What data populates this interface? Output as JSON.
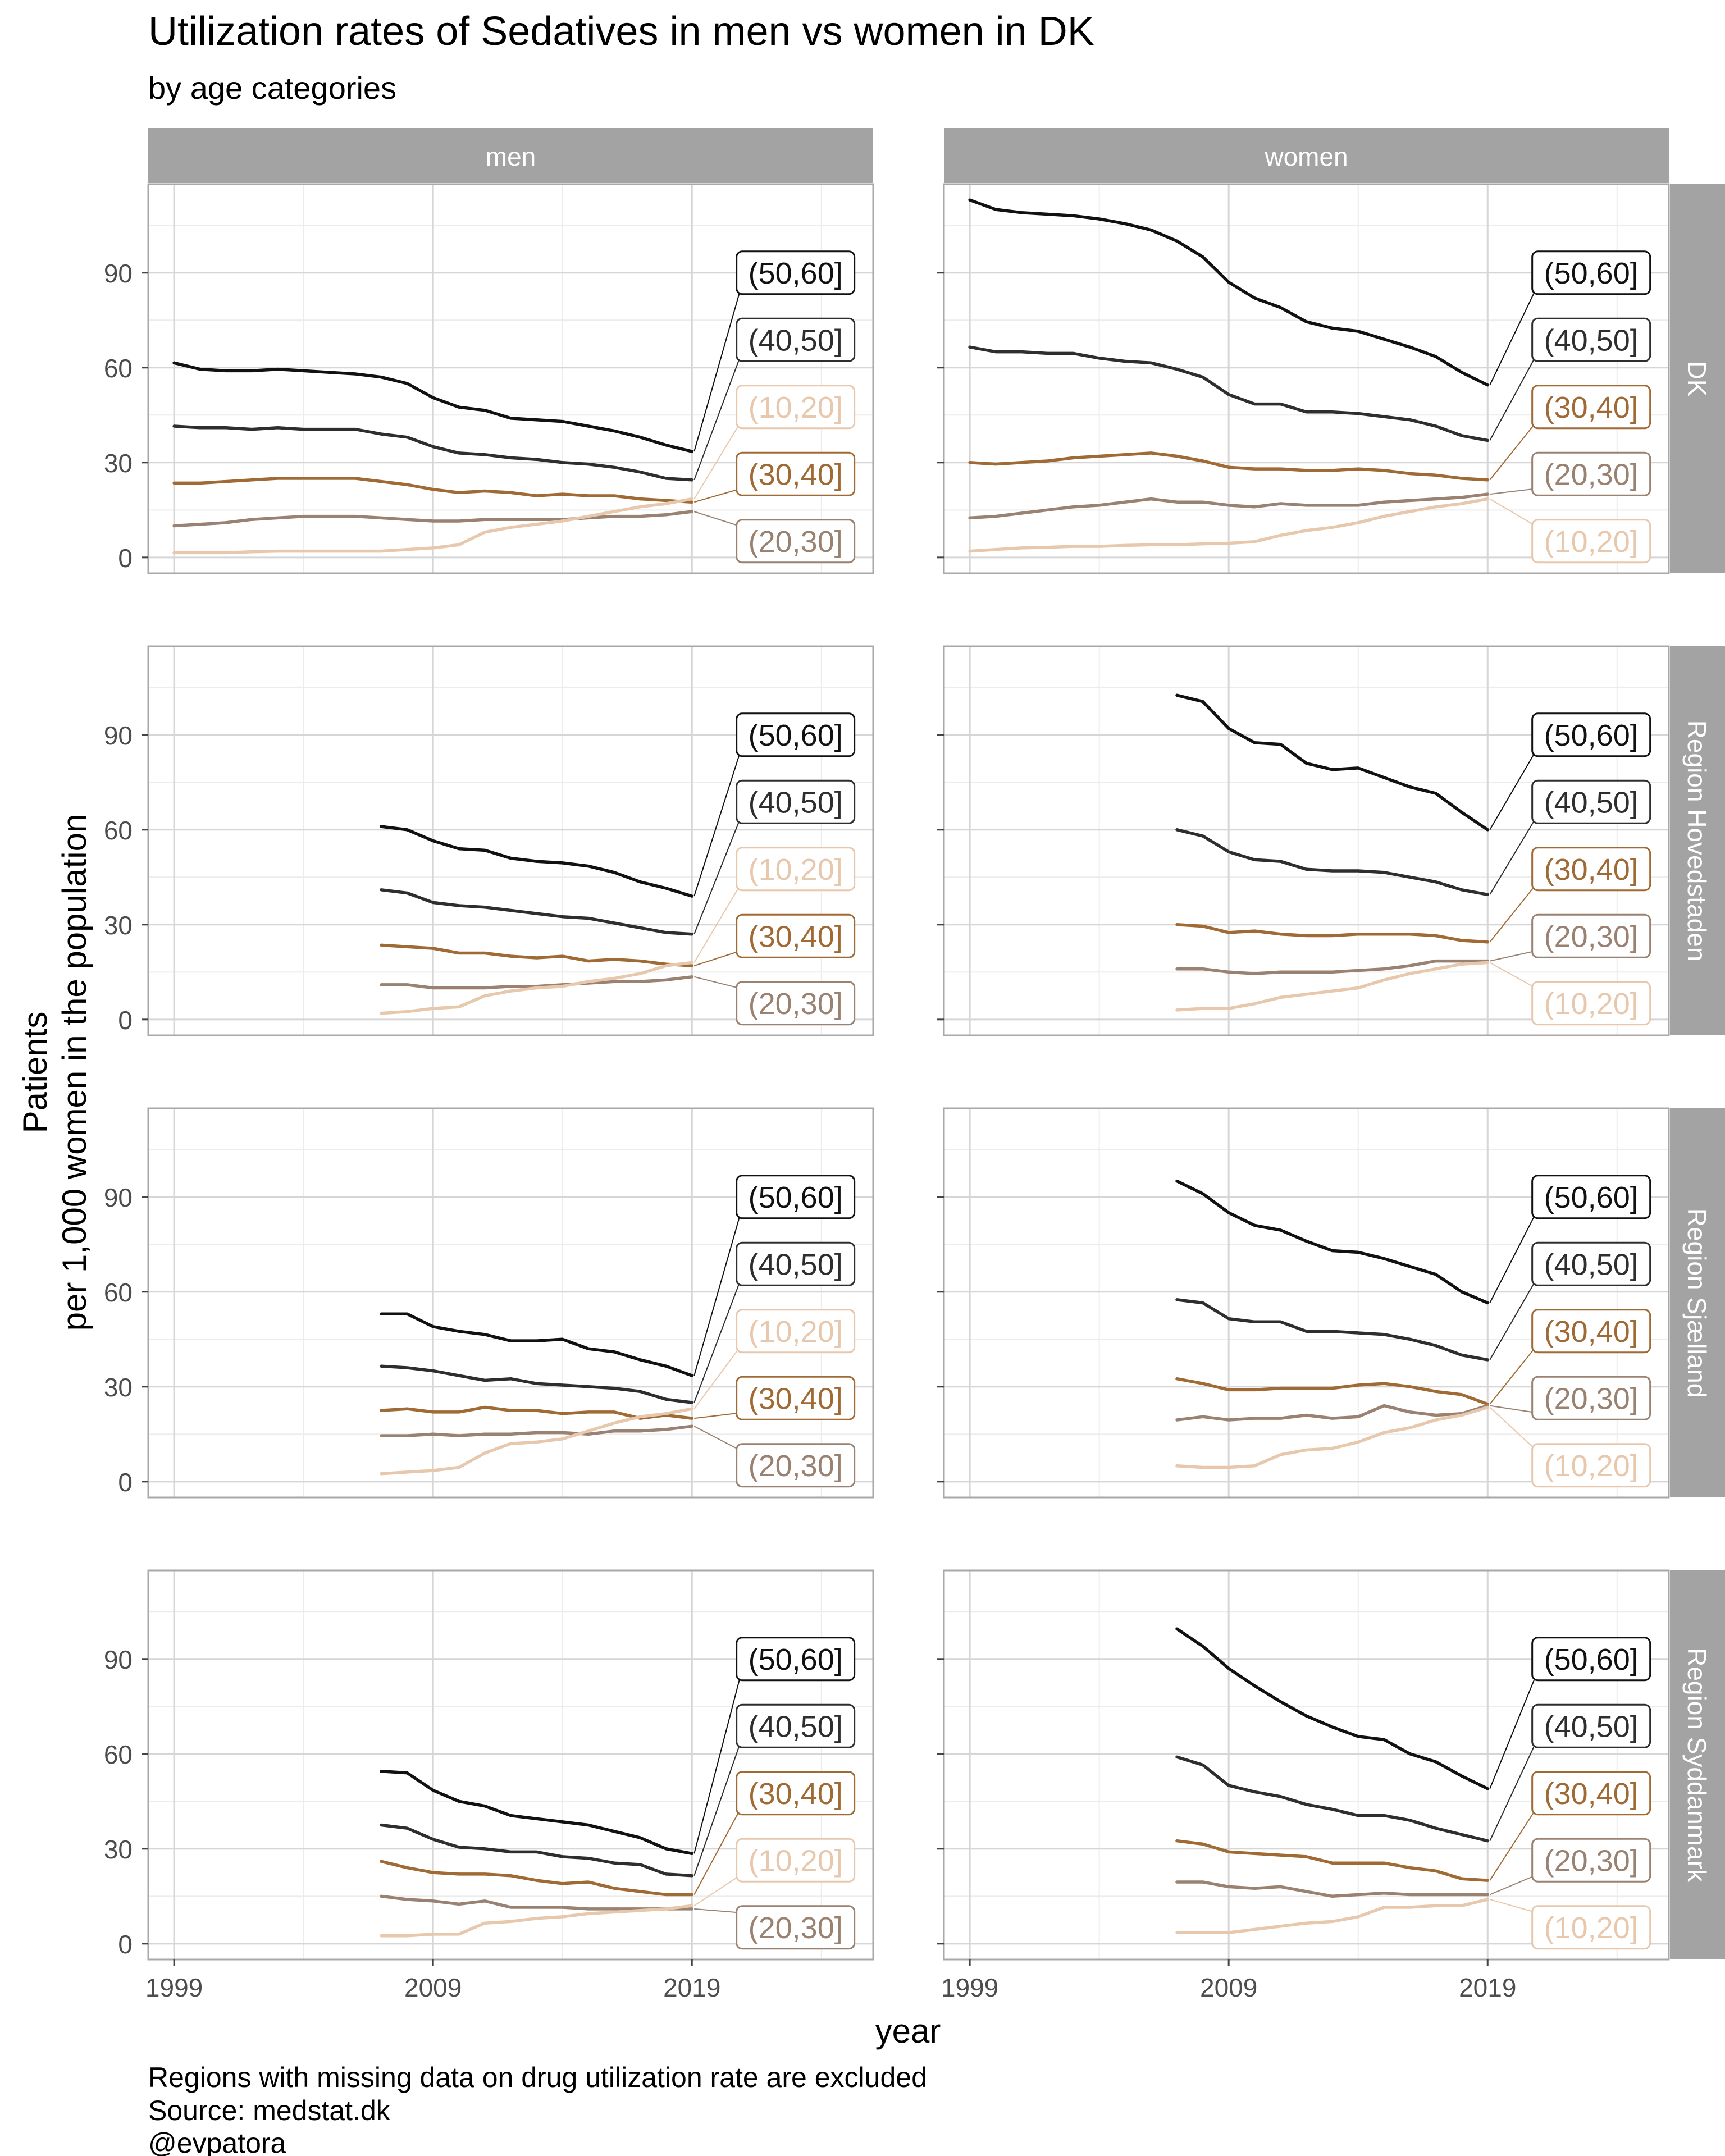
{
  "title": "Utilization rates of Sedatives in men vs women in DK",
  "subtitle": "by age categories",
  "caption": [
    "Regions with missing data on drug utilization rate are excluded",
    "Source: medstat.dk",
    "@evpatora"
  ],
  "chart_data": {
    "type": "line",
    "xlabel": "year",
    "ylabel": [
      "Patients",
      "per 1,000 women in the population"
    ],
    "x_ticks": [
      1999,
      2009,
      2019
    ],
    "y_ticks": [
      0,
      30,
      60,
      90
    ],
    "xlim": [
      1998,
      2026
    ],
    "ylim": [
      -5,
      118
    ],
    "facet_columns": [
      "men",
      "women"
    ],
    "facet_rows": [
      "DK",
      "Region Hovedstaden",
      "Region Sjælland",
      "Region Syddanmark"
    ],
    "colors": {
      "(50,60]": "#111111",
      "(40,50]": "#2e2e2e",
      "(30,40]": "#a06a35",
      "(20,30]": "#9a8272",
      "(10,20]": "#e8c8ad"
    },
    "panels": [
      {
        "row": "DK",
        "col": "men",
        "start_year": 1999,
        "label_order": [
          "(50,60]",
          "(40,50]",
          "(10,20]",
          "(30,40]",
          "(20,30]"
        ],
        "series": [
          {
            "name": "(50,60]",
            "values": [
              61.5,
              59.5,
              59,
              59,
              59.5,
              59,
              58.5,
              58,
              57,
              55,
              50.5,
              47.5,
              46.5,
              44,
              43.5,
              43,
              41.5,
              40,
              38,
              35.5,
              33.5
            ]
          },
          {
            "name": "(40,50]",
            "values": [
              41.5,
              41,
              41,
              40.5,
              41,
              40.5,
              40.5,
              40.5,
              39,
              38,
              35,
              33,
              32.5,
              31.5,
              31,
              30,
              29.5,
              28.5,
              27,
              25,
              24.5
            ]
          },
          {
            "name": "(30,40]",
            "values": [
              23.5,
              23.5,
              24,
              24.5,
              25,
              25,
              25,
              25,
              24,
              23,
              21.5,
              20.5,
              21,
              20.5,
              19.5,
              20,
              19.5,
              19.5,
              18.5,
              18,
              17.5
            ]
          },
          {
            "name": "(20,30]",
            "values": [
              10,
              10.5,
              11,
              12,
              12.5,
              13,
              13,
              13,
              12.5,
              12,
              11.5,
              11.5,
              12,
              12,
              12,
              12,
              12.5,
              13,
              13,
              13.5,
              14.5
            ]
          },
          {
            "name": "(10,20]",
            "values": [
              1.5,
              1.5,
              1.5,
              1.8,
              2,
              2,
              2,
              2,
              2,
              2.5,
              3,
              4,
              8,
              9.5,
              10.5,
              11.5,
              13,
              14.5,
              16,
              17,
              18.5
            ]
          }
        ]
      },
      {
        "row": "DK",
        "col": "women",
        "start_year": 1999,
        "label_order": [
          "(50,60]",
          "(40,50]",
          "(30,40]",
          "(20,30]",
          "(10,20]"
        ],
        "series": [
          {
            "name": "(50,60]",
            "values": [
              113,
              110,
              109,
              108.5,
              108,
              107,
              105.5,
              103.5,
              100,
              95,
              87,
              82,
              79,
              74.5,
              72.5,
              71.5,
              69,
              66.5,
              63.5,
              58.5,
              54.5
            ]
          },
          {
            "name": "(40,50]",
            "values": [
              66.5,
              65,
              65,
              64.5,
              64.5,
              63,
              62,
              61.5,
              59.5,
              57,
              51.5,
              48.5,
              48.5,
              46,
              46,
              45.5,
              44.5,
              43.5,
              41.5,
              38.5,
              37
            ]
          },
          {
            "name": "(30,40]",
            "values": [
              30,
              29.5,
              30,
              30.5,
              31.5,
              32,
              32.5,
              33,
              32,
              30.5,
              28.5,
              28,
              28,
              27.5,
              27.5,
              28,
              27.5,
              26.5,
              26,
              25,
              24.5
            ]
          },
          {
            "name": "(20,30]",
            "values": [
              12.5,
              13,
              14,
              15,
              16,
              16.5,
              17.5,
              18.5,
              17.5,
              17.5,
              16.5,
              16,
              17,
              16.5,
              16.5,
              16.5,
              17.5,
              18,
              18.5,
              19,
              20
            ]
          },
          {
            "name": "(10,20]",
            "values": [
              2,
              2.5,
              3,
              3.2,
              3.5,
              3.5,
              3.8,
              4,
              4,
              4.3,
              4.5,
              5,
              7,
              8.5,
              9.5,
              11,
              13,
              14.5,
              16,
              17,
              18.5
            ]
          }
        ]
      },
      {
        "row": "Region Hovedstaden",
        "col": "men",
        "start_year": 2007,
        "label_order": [
          "(50,60]",
          "(40,50]",
          "(10,20]",
          "(30,40]",
          "(20,30]"
        ],
        "series": [
          {
            "name": "(50,60]",
            "values": [
              61,
              60,
              56.5,
              54,
              53.5,
              51,
              50,
              49.5,
              48.5,
              46.5,
              43.5,
              41.5,
              39
            ]
          },
          {
            "name": "(40,50]",
            "values": [
              41,
              40,
              37,
              36,
              35.5,
              34.5,
              33.5,
              32.5,
              32,
              30.5,
              29,
              27.5,
              27
            ]
          },
          {
            "name": "(30,40]",
            "values": [
              23.5,
              23,
              22.5,
              21,
              21,
              20,
              19.5,
              20,
              18.5,
              19,
              18.5,
              17.5,
              17
            ]
          },
          {
            "name": "(20,30]",
            "values": [
              11,
              11,
              10,
              10,
              10,
              10.5,
              10.5,
              11,
              11.5,
              12,
              12,
              12.5,
              13.5
            ]
          },
          {
            "name": "(10,20]",
            "values": [
              2,
              2.5,
              3.5,
              4,
              7.5,
              9,
              10,
              10.5,
              12,
              13,
              14.5,
              17,
              18
            ]
          }
        ]
      },
      {
        "row": "Region Hovedstaden",
        "col": "women",
        "start_year": 2007,
        "label_order": [
          "(50,60]",
          "(40,50]",
          "(30,40]",
          "(20,30]",
          "(10,20]"
        ],
        "series": [
          {
            "name": "(50,60]",
            "values": [
              102.5,
              100.5,
              92,
              87.5,
              87,
              81,
              79,
              79.5,
              76.5,
              73.5,
              71.5,
              65.5,
              60
            ]
          },
          {
            "name": "(40,50]",
            "values": [
              60,
              58,
              53,
              50.5,
              50,
              47.5,
              47,
              47,
              46.5,
              45,
              43.5,
              41,
              39.5
            ]
          },
          {
            "name": "(30,40]",
            "values": [
              30,
              29.5,
              27.5,
              28,
              27,
              26.5,
              26.5,
              27,
              27,
              27,
              26.5,
              25,
              24.5
            ]
          },
          {
            "name": "(20,30]",
            "values": [
              16,
              16,
              15,
              14.5,
              15,
              15,
              15,
              15.5,
              16,
              17,
              18.5,
              18.5,
              18.5
            ]
          },
          {
            "name": "(10,20]",
            "values": [
              3,
              3.5,
              3.5,
              5,
              7,
              8,
              9,
              10,
              12.5,
              14.5,
              16,
              17.5,
              18
            ]
          }
        ]
      },
      {
        "row": "Region Sjælland",
        "col": "men",
        "start_year": 2007,
        "label_order": [
          "(50,60]",
          "(40,50]",
          "(10,20]",
          "(30,40]",
          "(20,30]"
        ],
        "series": [
          {
            "name": "(50,60]",
            "values": [
              53,
              53,
              49,
              47.5,
              46.5,
              44.5,
              44.5,
              45,
              42,
              41,
              38.5,
              36.5,
              33.5
            ]
          },
          {
            "name": "(40,50]",
            "values": [
              36.5,
              36,
              35,
              33.5,
              32,
              32.5,
              31,
              30.5,
              30,
              29.5,
              28.5,
              26,
              25
            ]
          },
          {
            "name": "(30,40]",
            "values": [
              22.5,
              23,
              22,
              22,
              23.5,
              22.5,
              22.5,
              21.5,
              22,
              22,
              20,
              21,
              20
            ]
          },
          {
            "name": "(20,30]",
            "values": [
              14.5,
              14.5,
              15,
              14.5,
              15,
              15,
              15.5,
              15.5,
              15,
              16,
              16,
              16.5,
              17.5
            ]
          },
          {
            "name": "(10,20]",
            "values": [
              2.5,
              3,
              3.5,
              4.5,
              9,
              12,
              12.5,
              13.5,
              16,
              18.5,
              20.5,
              21.5,
              23
            ]
          }
        ]
      },
      {
        "row": "Region Sjælland",
        "col": "women",
        "start_year": 2007,
        "label_order": [
          "(50,60]",
          "(40,50]",
          "(30,40]",
          "(20,30]",
          "(10,20]"
        ],
        "series": [
          {
            "name": "(50,60]",
            "values": [
              95,
              91,
              85,
              81,
              79.5,
              76,
              73,
              72.5,
              70.5,
              68,
              65.5,
              60,
              56.5
            ]
          },
          {
            "name": "(40,50]",
            "values": [
              57.5,
              56.5,
              51.5,
              50.5,
              50.5,
              47.5,
              47.5,
              47,
              46.5,
              45,
              43,
              40,
              38.5
            ]
          },
          {
            "name": "(30,40]",
            "values": [
              32.5,
              31,
              29,
              29,
              29.5,
              29.5,
              29.5,
              30.5,
              31,
              30,
              28.5,
              27.5,
              24.5
            ]
          },
          {
            "name": "(20,30]",
            "values": [
              19.5,
              20.5,
              19.5,
              20,
              20,
              21,
              20,
              20.5,
              24,
              22,
              21,
              21.5,
              24
            ]
          },
          {
            "name": "(10,20]",
            "values": [
              5,
              4.5,
              4.5,
              5,
              8.5,
              10,
              10.5,
              12.5,
              15.5,
              17,
              19.5,
              21,
              23.5
            ]
          }
        ]
      },
      {
        "row": "Region Syddanmark",
        "col": "men",
        "start_year": 2007,
        "label_order": [
          "(50,60]",
          "(40,50]",
          "(30,40]",
          "(10,20]",
          "(20,30]"
        ],
        "series": [
          {
            "name": "(50,60]",
            "values": [
              54.5,
              54,
              48.5,
              45,
              43.5,
              40.5,
              39.5,
              38.5,
              37.5,
              35.5,
              33.5,
              30,
              28.5
            ]
          },
          {
            "name": "(40,50]",
            "values": [
              37.5,
              36.5,
              33,
              30.5,
              30,
              29,
              29,
              27.5,
              27,
              25.5,
              25,
              22,
              21.5
            ]
          },
          {
            "name": "(30,40]",
            "values": [
              26,
              24,
              22.5,
              22,
              22,
              21.5,
              20,
              19,
              19.5,
              17.5,
              16.5,
              15.5,
              15.5
            ]
          },
          {
            "name": "(20,30]",
            "values": [
              15,
              14,
              13.5,
              12.5,
              13.5,
              11.5,
              11.5,
              11.5,
              11,
              11,
              11,
              11,
              11
            ]
          },
          {
            "name": "(10,20]",
            "values": [
              2.5,
              2.5,
              3,
              3,
              6.5,
              7,
              8,
              8.5,
              9.5,
              10,
              10.5,
              11,
              12
            ]
          }
        ]
      },
      {
        "row": "Region Syddanmark",
        "col": "women",
        "start_year": 2007,
        "label_order": [
          "(50,60]",
          "(40,50]",
          "(30,40]",
          "(20,30]",
          "(10,20]"
        ],
        "series": [
          {
            "name": "(50,60]",
            "values": [
              99.5,
              94,
              87,
              81.5,
              76.5,
              72,
              68.5,
              65.5,
              64.5,
              60,
              57.5,
              53,
              49
            ]
          },
          {
            "name": "(40,50]",
            "values": [
              59,
              56.5,
              50,
              48,
              46.5,
              44,
              42.5,
              40.5,
              40.5,
              39,
              36.5,
              34.5,
              32.5
            ]
          },
          {
            "name": "(30,40]",
            "values": [
              32.5,
              31.5,
              29,
              28.5,
              28,
              27.5,
              25.5,
              25.5,
              25.5,
              24,
              23,
              20.5,
              20
            ]
          },
          {
            "name": "(20,30]",
            "values": [
              19.5,
              19.5,
              18,
              17.5,
              18,
              16.5,
              15,
              15.5,
              16,
              15.5,
              15.5,
              15.5,
              15.5
            ]
          },
          {
            "name": "(10,20]",
            "values": [
              3.5,
              3.5,
              3.5,
              4.5,
              5.5,
              6.5,
              7,
              8.5,
              11.5,
              11.5,
              12,
              12,
              14
            ]
          }
        ]
      }
    ]
  }
}
